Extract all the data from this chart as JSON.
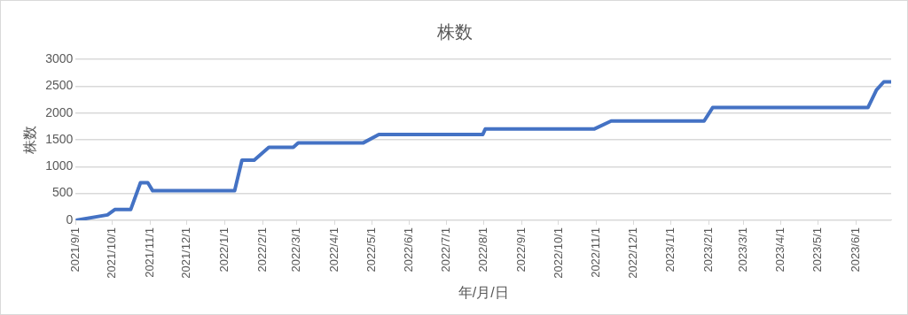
{
  "chart_data": {
    "type": "line",
    "title": "株数",
    "xlabel": "年/月/日",
    "ylabel": "株数",
    "x": [
      "2021-09-01",
      "2021-09-27",
      "2021-10-03",
      "2021-10-16",
      "2021-10-24",
      "2021-10-30",
      "2021-11-03",
      "2022-01-09",
      "2022-01-15",
      "2022-01-25",
      "2022-02-06",
      "2022-02-26",
      "2022-03-02",
      "2022-04-24",
      "2022-05-07",
      "2022-07-31",
      "2022-08-02",
      "2022-10-30",
      "2022-11-13",
      "2023-01-28",
      "2023-02-04",
      "2023-06-11",
      "2023-06-18",
      "2023-06-24",
      "2023-06-30"
    ],
    "series": [
      {
        "color": "#4472c4",
        "values": [
          0,
          100,
          200,
          200,
          700,
          700,
          550,
          550,
          1120,
          1120,
          1360,
          1360,
          1440,
          1440,
          1600,
          1600,
          1700,
          1700,
          1850,
          1850,
          2100,
          2100,
          2430,
          2580,
          2580
        ]
      }
    ],
    "xlim": [
      "2021-09-01",
      "2023-06-30"
    ],
    "xticks": [
      {
        "value": "2021-09-01",
        "label": "2021/9/1"
      },
      {
        "value": "2021-10-01",
        "label": "2021/10/1"
      },
      {
        "value": "2021-11-01",
        "label": "2021/11/1"
      },
      {
        "value": "2021-12-01",
        "label": "2021/12/1"
      },
      {
        "value": "2022-01-01",
        "label": "2022/1/1"
      },
      {
        "value": "2022-02-01",
        "label": "2022/2/1"
      },
      {
        "value": "2022-03-01",
        "label": "2022/3/1"
      },
      {
        "value": "2022-04-01",
        "label": "2022/4/1"
      },
      {
        "value": "2022-05-01",
        "label": "2022/5/1"
      },
      {
        "value": "2022-06-01",
        "label": "2022/6/1"
      },
      {
        "value": "2022-07-01",
        "label": "2022/7/1"
      },
      {
        "value": "2022-08-01",
        "label": "2022/8/1"
      },
      {
        "value": "2022-09-01",
        "label": "2022/9/1"
      },
      {
        "value": "2022-10-01",
        "label": "2022/10/1"
      },
      {
        "value": "2022-11-01",
        "label": "2022/11/1"
      },
      {
        "value": "2022-12-01",
        "label": "2022/12/1"
      },
      {
        "value": "2023-01-01",
        "label": "2023/1/1"
      },
      {
        "value": "2023-02-01",
        "label": "2023/2/1"
      },
      {
        "value": "2023-03-01",
        "label": "2023/3/1"
      },
      {
        "value": "2023-04-01",
        "label": "2023/4/1"
      },
      {
        "value": "2023-05-01",
        "label": "2023/5/1"
      },
      {
        "value": "2023-06-01",
        "label": "2023/6/1"
      }
    ],
    "ylim": [
      0,
      3000
    ],
    "yticks": [
      0,
      500,
      1000,
      1500,
      2000,
      2500,
      3000
    ],
    "grid": "y",
    "legend": false,
    "marker": "none",
    "line_style": "solid"
  }
}
